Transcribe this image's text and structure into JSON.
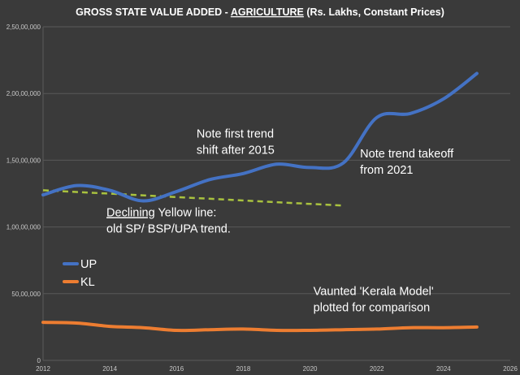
{
  "chart_data": {
    "type": "line",
    "title_prefix": "GROSS STATE VALUE ADDED - ",
    "title_emph": "AGRICULTURE",
    "title_suffix": " (Rs. Lakhs, Constant Prices)",
    "xlim": [
      2012,
      2026
    ],
    "ylim": [
      0,
      25000000
    ],
    "x_ticks": [
      {
        "value": 2012,
        "label": "2012"
      },
      {
        "value": 2014,
        "label": "2014"
      },
      {
        "value": 2016,
        "label": "2016"
      },
      {
        "value": 2018,
        "label": "2018"
      },
      {
        "value": 2020,
        "label": "2020"
      },
      {
        "value": 2022,
        "label": "2022"
      },
      {
        "value": 2024,
        "label": "2024"
      },
      {
        "value": 2026,
        "label": "2026"
      }
    ],
    "y_ticks": [
      {
        "value": 0,
        "label": "0"
      },
      {
        "value": 5000000,
        "label": "50,00,000"
      },
      {
        "value": 10000000,
        "label": "1,00,00,000"
      },
      {
        "value": 15000000,
        "label": "1,50,00,000"
      },
      {
        "value": 20000000,
        "label": "2,00,00,000"
      },
      {
        "value": 25000000,
        "label": "2,50,00,000"
      }
    ],
    "grid": "horizontal",
    "legend_position": "left-middle",
    "series": [
      {
        "name": "UP",
        "color": "#4472c4",
        "x": [
          2012,
          2013,
          2014,
          2015,
          2016,
          2017,
          2018,
          2019,
          2020,
          2021,
          2022,
          2023,
          2024,
          2025
        ],
        "values": [
          12400000,
          13100000,
          12750000,
          11950000,
          12650000,
          13550000,
          14000000,
          14700000,
          14450000,
          14800000,
          18200000,
          18500000,
          19600000,
          21500000
        ]
      },
      {
        "name": "KL",
        "color": "#ed7d31",
        "x": [
          2012,
          2013,
          2014,
          2015,
          2016,
          2017,
          2018,
          2019,
          2020,
          2021,
          2022,
          2023,
          2024,
          2025
        ],
        "values": [
          2850000,
          2800000,
          2550000,
          2450000,
          2250000,
          2300000,
          2350000,
          2250000,
          2250000,
          2300000,
          2350000,
          2450000,
          2450000,
          2500000
        ]
      }
    ],
    "trendline": {
      "color": "#a9c23f",
      "x": [
        2012,
        2021
      ],
      "values": [
        12750000,
        11600000
      ]
    },
    "annotations": [
      {
        "lines": [
          "Note first trend",
          "shift after 2015"
        ],
        "x": 2016.6,
        "y": 16700000
      },
      {
        "lines": [
          "Note trend takeoff",
          "from 2021"
        ],
        "x": 2021.5,
        "y": 15200000
      },
      {
        "lines": [
          "Declining Yellow line:",
          "old SP/ BSP/UPA trend."
        ],
        "x": 2013.9,
        "y": 10800000,
        "underline_word": "Declining",
        "rest_first_line": " Yellow line:"
      },
      {
        "lines": [
          "Vaunted 'Kerala Model'",
          "plotted for comparison"
        ],
        "x": 2020.1,
        "y": 4900000
      }
    ]
  }
}
